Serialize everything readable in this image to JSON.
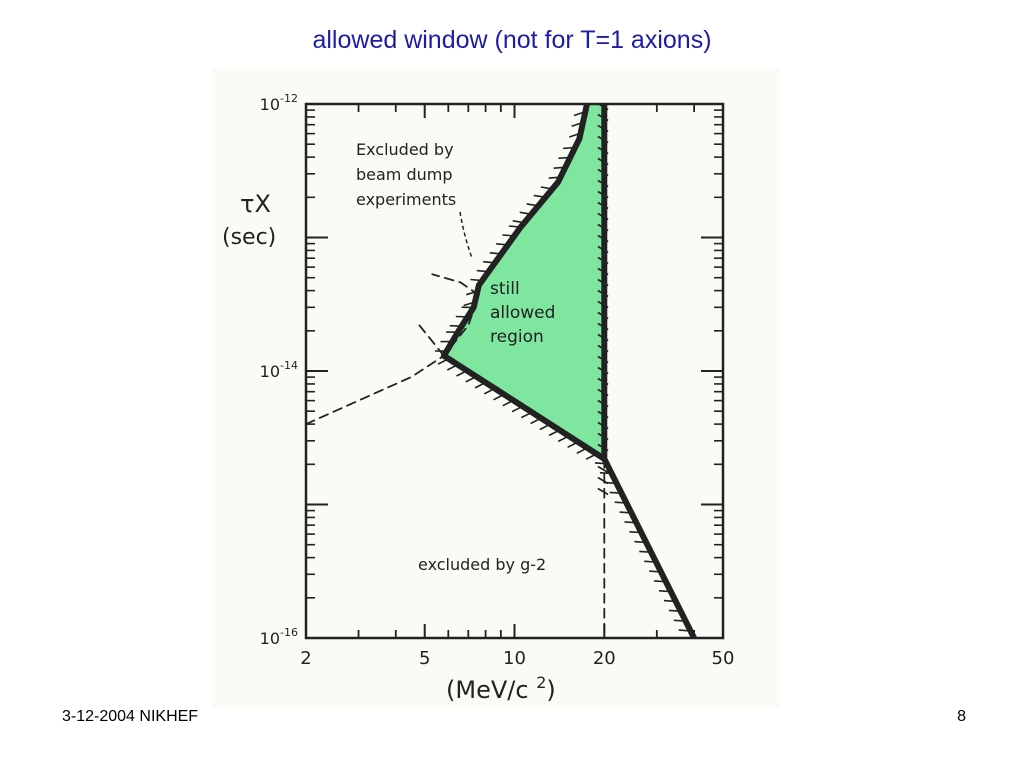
{
  "slide": {
    "title": "allowed window  (not for T=1 axions)",
    "footer_left": "3-12-2004 NIKHEF",
    "page_number": "8"
  },
  "colors": {
    "title": "#1c1ca4",
    "allowed_fill": "#7fe6a0",
    "ink": "#222222"
  },
  "chart_data": {
    "type": "area",
    "title": "",
    "ylabel_line1": "τX",
    "ylabel_line2": "(sec)",
    "xlabel": "(MeV/c2)",
    "x_scale": "log",
    "y_scale": "log",
    "xlim": [
      2,
      50
    ],
    "ylim": [
      1e-16,
      1e-12
    ],
    "x_ticks": [
      {
        "value": 2,
        "label": "2"
      },
      {
        "value": 5,
        "label": "5"
      },
      {
        "value": 10,
        "label": "10"
      },
      {
        "value": 20,
        "label": "20"
      },
      {
        "value": 50,
        "label": "50"
      }
    ],
    "y_ticks": [
      {
        "value": 1e-12,
        "base": "10",
        "exp": "-12"
      },
      {
        "value": 1e-14,
        "base": "10",
        "exp": "-14"
      },
      {
        "value": 1e-16,
        "base": "10",
        "exp": "-16"
      }
    ],
    "regions": [
      {
        "name": "still allowed region",
        "label_lines": [
          "still",
          "allowed",
          "region"
        ],
        "boundary": [
          [
            17.5,
            1e-12
          ],
          [
            20,
            1e-12
          ],
          [
            20,
            2.2e-15
          ],
          [
            5.8,
            1.3e-14
          ],
          [
            6.5,
            2e-14
          ],
          [
            7.3,
            3e-14
          ],
          [
            7.6,
            4.4e-14
          ],
          [
            10.5,
            1.2e-13
          ],
          [
            14,
            2.6e-13
          ],
          [
            16.5,
            5.5e-13
          ]
        ]
      }
    ],
    "curves": [
      {
        "name": "beam dump boundary",
        "style": "solid",
        "points": [
          [
            5.8,
            1.3e-14
          ],
          [
            6.5,
            2e-14
          ],
          [
            7.3,
            3e-14
          ],
          [
            7.6,
            4.4e-14
          ],
          [
            10.5,
            1.2e-13
          ],
          [
            14,
            2.6e-13
          ],
          [
            16.5,
            5.5e-13
          ],
          [
            17.5,
            1e-12
          ]
        ]
      },
      {
        "name": "g-2 boundary",
        "style": "solid",
        "points": [
          [
            5.8,
            1.3e-14
          ],
          [
            20,
            2.2e-15
          ],
          [
            40,
            1e-16
          ]
        ]
      },
      {
        "name": "mass limit",
        "style": "solid",
        "points": [
          [
            20,
            1e-12
          ],
          [
            20,
            2.2e-15
          ]
        ]
      },
      {
        "name": "mass limit extension",
        "style": "dashed",
        "points": [
          [
            20,
            2.2e-15
          ],
          [
            20,
            1e-16
          ]
        ]
      },
      {
        "name": "beam dump extension",
        "style": "dashed",
        "points": [
          [
            2,
            4e-15
          ],
          [
            3,
            6e-15
          ],
          [
            4.5,
            9e-15
          ],
          [
            5.8,
            1.3e-14
          ],
          [
            7,
            2.2e-14
          ],
          [
            7.6,
            3.7e-14
          ],
          [
            6.6,
            4.6e-14
          ],
          [
            5.3,
            5.3e-14
          ]
        ]
      },
      {
        "name": "lower dashed branch",
        "style": "dashed",
        "points": [
          [
            5.8,
            1.3e-14
          ],
          [
            4.8,
            2.2e-14
          ]
        ]
      }
    ],
    "annotations": [
      {
        "lines": [
          "Excluded by",
          "beam dump",
          "experiments"
        ],
        "at": [
          7.5,
          4e-13
        ]
      },
      {
        "lines": [
          "excluded by  g-2"
        ],
        "at": [
          11.5,
          2.6e-16
        ]
      }
    ],
    "grid": false,
    "legend": "none"
  }
}
